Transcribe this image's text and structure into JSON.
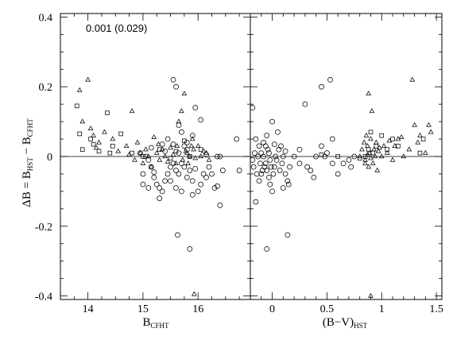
{
  "chart_data": {
    "type": "scatter",
    "annotation": "0.001 (0.029)",
    "ylabel": "ΔB = B_HST − B_CFHT",
    "ylim": [
      -0.41,
      0.41
    ],
    "yticks": [
      -0.4,
      -0.2,
      0,
      0.2,
      0.4
    ],
    "yticklabels": [
      "-0.4",
      "-0.2",
      "0",
      "0.2",
      "0.4"
    ],
    "grid": false,
    "legend": "none",
    "series": [
      {
        "marker": "triangle"
      },
      {
        "marker": "square"
      },
      {
        "marker": "circle"
      }
    ],
    "panels": [
      {
        "xlabel_main": "B",
        "xlabel_sub": "CFHT",
        "xlim": [
          13.5,
          16.95
        ],
        "xticks": [
          14,
          15,
          16
        ],
        "xticklabels": [
          "14",
          "15",
          "16"
        ],
        "points": {
          "triangle": [
            [
              13.85,
              0.19
            ],
            [
              14.0,
              0.22
            ],
            [
              13.9,
              0.1
            ],
            [
              14.05,
              0.08
            ],
            [
              14.1,
              0.06
            ],
            [
              14.2,
              0.04
            ],
            [
              14.15,
              0.025
            ],
            [
              14.3,
              0.07
            ],
            [
              14.45,
              0.05
            ],
            [
              14.55,
              0.015
            ],
            [
              14.7,
              0.03
            ],
            [
              14.8,
              0.13
            ],
            [
              14.85,
              -0.01
            ],
            [
              14.9,
              0.04
            ],
            [
              15.0,
              -0.02
            ],
            [
              15.05,
              0.02
            ],
            [
              15.1,
              0.0
            ],
            [
              15.15,
              -0.03
            ],
            [
              15.2,
              0.055
            ],
            [
              15.25,
              0.01
            ],
            [
              15.3,
              -0.01
            ],
            [
              15.35,
              0.02
            ],
            [
              15.4,
              0.0
            ],
            [
              15.45,
              -0.015
            ],
            [
              15.5,
              0.025
            ],
            [
              15.55,
              0.005
            ],
            [
              15.6,
              -0.02
            ],
            [
              15.62,
              0.03
            ],
            [
              15.65,
              0.1
            ],
            [
              15.7,
              0.13
            ],
            [
              15.72,
              -0.01
            ],
            [
              15.75,
              0.18
            ],
            [
              15.78,
              0.015
            ],
            [
              15.8,
              0.01
            ],
            [
              15.82,
              -0.02
            ],
            [
              15.85,
              0.0
            ],
            [
              15.88,
              0.03
            ],
            [
              15.9,
              0.05
            ],
            [
              15.92,
              0.02
            ],
            [
              15.95,
              -0.005
            ],
            [
              16.0,
              0.03
            ],
            [
              16.05,
              0.0
            ],
            [
              16.1,
              0.015
            ],
            [
              16.15,
              0.01
            ],
            [
              16.2,
              -0.01
            ],
            [
              15.93,
              -0.395
            ],
            [
              14.75,
              0.005
            ],
            [
              14.95,
              0.01
            ],
            [
              15.28,
              0.035
            ]
          ],
          "square": [
            [
              13.8,
              0.145
            ],
            [
              13.85,
              0.065
            ],
            [
              14.05,
              0.05
            ],
            [
              14.1,
              0.035
            ],
            [
              14.2,
              0.015
            ],
            [
              14.35,
              0.125
            ],
            [
              14.45,
              0.03
            ],
            [
              14.6,
              0.065
            ],
            [
              14.8,
              0.01
            ],
            [
              15.0,
              0.0
            ],
            [
              15.3,
              0.02
            ],
            [
              15.5,
              -0.005
            ],
            [
              15.6,
              0.015
            ],
            [
              15.75,
              0.045
            ],
            [
              15.85,
              0.0
            ],
            [
              16.05,
              0.02
            ],
            [
              13.9,
              0.02
            ],
            [
              14.4,
              0.01
            ]
          ],
          "circle": [
            [
              15.55,
              0.22
            ],
            [
              15.6,
              0.2
            ],
            [
              15.65,
              0.09
            ],
            [
              15.7,
              0.07
            ],
            [
              15.8,
              0.04
            ],
            [
              15.9,
              0.06
            ],
            [
              15.95,
              0.14
            ],
            [
              16.05,
              0.105
            ],
            [
              16.4,
              0.0
            ],
            [
              16.45,
              -0.04
            ],
            [
              16.25,
              -0.05
            ],
            [
              16.3,
              -0.09
            ],
            [
              16.35,
              -0.085
            ],
            [
              16.4,
              -0.14
            ],
            [
              16.15,
              -0.06
            ],
            [
              16.1,
              -0.05
            ],
            [
              16.05,
              -0.08
            ],
            [
              16.0,
              -0.1
            ],
            [
              15.9,
              -0.07
            ],
            [
              15.85,
              -0.04
            ],
            [
              15.8,
              -0.06
            ],
            [
              15.75,
              -0.03
            ],
            [
              15.7,
              -0.02
            ],
            [
              15.65,
              -0.05
            ],
            [
              15.6,
              -0.04
            ],
            [
              15.55,
              -0.02
            ],
            [
              15.5,
              -0.03
            ],
            [
              15.45,
              -0.05
            ],
            [
              15.4,
              -0.07
            ],
            [
              15.35,
              -0.1
            ],
            [
              15.3,
              -0.12
            ],
            [
              15.25,
              -0.08
            ],
            [
              15.2,
              -0.06
            ],
            [
              15.15,
              -0.03
            ],
            [
              15.1,
              -0.01
            ],
            [
              15.05,
              0.0
            ],
            [
              15.0,
              -0.05
            ],
            [
              14.95,
              0.01
            ],
            [
              15.0,
              -0.08
            ],
            [
              15.1,
              -0.09
            ],
            [
              15.3,
              -0.09
            ],
            [
              15.5,
              -0.07
            ],
            [
              15.7,
              -0.1
            ],
            [
              15.9,
              -0.11
            ],
            [
              16.2,
              -0.03
            ],
            [
              16.7,
              0.05
            ],
            [
              16.75,
              -0.04
            ],
            [
              15.63,
              -0.225
            ],
            [
              15.85,
              -0.265
            ],
            [
              15.45,
              0.05
            ],
            [
              15.35,
              0.035
            ],
            [
              15.8,
              0.02
            ],
            [
              15.2,
              -0.045
            ],
            [
              15.6,
              -0.09
            ],
            [
              16.15,
              0.005
            ],
            [
              16.35,
              0.0
            ],
            [
              15.95,
              -0.035
            ],
            [
              15.55,
              0.035
            ],
            [
              15.75,
              0.03
            ],
            [
              15.15,
              0.025
            ],
            [
              15.4,
              0.015
            ],
            [
              15.65,
              0.01
            ]
          ]
        }
      },
      {
        "xlabel_main": "(B−V)",
        "xlabel_sub": "HST",
        "xlim": [
          -0.2,
          1.55
        ],
        "xticks": [
          0,
          0.5,
          1,
          1.5
        ],
        "xticklabels": [
          "0",
          "0.5",
          "1",
          "1.5"
        ],
        "points": {
          "triangle": [
            [
              0.8,
              0.0
            ],
            [
              0.82,
              0.02
            ],
            [
              0.84,
              0.04
            ],
            [
              0.85,
              -0.01
            ],
            [
              0.86,
              0.06
            ],
            [
              0.87,
              0.03
            ],
            [
              0.88,
              -0.03
            ],
            [
              0.89,
              0.01
            ],
            [
              0.9,
              0.05
            ],
            [
              0.91,
              0.13
            ],
            [
              0.88,
              0.18
            ],
            [
              0.92,
              -0.02
            ],
            [
              0.93,
              0.02
            ],
            [
              0.94,
              0.0
            ],
            [
              0.95,
              0.04
            ],
            [
              0.96,
              -0.04
            ],
            [
              0.97,
              0.015
            ],
            [
              0.98,
              0.025
            ],
            [
              1.0,
              0.0
            ],
            [
              1.02,
              0.03
            ],
            [
              1.05,
              0.01
            ],
            [
              1.1,
              -0.01
            ],
            [
              1.12,
              0.03
            ],
            [
              1.15,
              0.05
            ],
            [
              1.2,
              0.0
            ],
            [
              1.25,
              0.02
            ],
            [
              1.28,
              0.22
            ],
            [
              1.3,
              0.09
            ],
            [
              1.33,
              0.04
            ],
            [
              1.35,
              0.06
            ],
            [
              1.4,
              0.01
            ],
            [
              1.43,
              0.09
            ],
            [
              1.45,
              0.07
            ],
            [
              0.9,
              -0.4
            ],
            [
              0.85,
              -0.02
            ],
            [
              0.87,
              0.005
            ],
            [
              0.9,
              -0.005
            ],
            [
              1.18,
              0.055
            ],
            [
              1.07,
              0.045
            ]
          ],
          "square": [
            [
              0.45,
              0.005
            ],
            [
              0.6,
              0.0
            ],
            [
              0.85,
              0.0
            ],
            [
              0.88,
              0.02
            ],
            [
              0.9,
              0.07
            ],
            [
              0.92,
              0.01
            ],
            [
              0.95,
              0.03
            ],
            [
              1.0,
              0.06
            ],
            [
              1.05,
              0.02
            ],
            [
              1.1,
              0.05
            ],
            [
              1.15,
              0.03
            ],
            [
              1.35,
              0.01
            ],
            [
              1.38,
              0.05
            ],
            [
              0.8,
              -0.005
            ]
          ],
          "circle": [
            [
              0.53,
              0.22
            ],
            [
              0.45,
              0.2
            ],
            [
              0.3,
              0.15
            ],
            [
              -0.18,
              0.14
            ],
            [
              -0.15,
              0.05
            ],
            [
              -0.12,
              0.03
            ],
            [
              -0.1,
              0.01
            ],
            [
              -0.08,
              0.0
            ],
            [
              -0.06,
              -0.02
            ],
            [
              -0.05,
              -0.04
            ],
            [
              -0.03,
              -0.06
            ],
            [
              -0.02,
              -0.08
            ],
            [
              0.0,
              -0.1
            ],
            [
              0.02,
              -0.03
            ],
            [
              0.04,
              -0.01
            ],
            [
              0.06,
              0.02
            ],
            [
              0.08,
              0.03
            ],
            [
              0.1,
              0.0
            ],
            [
              0.12,
              -0.05
            ],
            [
              0.14,
              -0.07
            ],
            [
              0.16,
              -0.03
            ],
            [
              0.2,
              0.0
            ],
            [
              0.25,
              -0.02
            ],
            [
              0.35,
              -0.04
            ],
            [
              0.4,
              0.0
            ],
            [
              0.5,
              0.01
            ],
            [
              0.55,
              -0.02
            ],
            [
              0.65,
              -0.02
            ],
            [
              0.7,
              -0.01
            ],
            [
              0.75,
              0.0
            ],
            [
              -0.15,
              -0.13
            ],
            [
              -0.12,
              -0.07
            ],
            [
              -0.1,
              -0.05
            ],
            [
              -0.08,
              0.04
            ],
            [
              -0.05,
              0.06
            ],
            [
              -0.03,
              0.01
            ],
            [
              0.0,
              0.1
            ],
            [
              0.05,
              0.07
            ],
            [
              0.1,
              -0.09
            ],
            [
              0.14,
              -0.225
            ],
            [
              -0.05,
              -0.265
            ],
            [
              0.15,
              -0.08
            ],
            [
              -0.18,
              -0.01
            ],
            [
              -0.17,
              -0.03
            ],
            [
              -0.16,
              0.01
            ],
            [
              -0.14,
              -0.05
            ],
            [
              -0.13,
              0.0
            ],
            [
              -0.11,
              -0.02
            ],
            [
              -0.09,
              -0.04
            ],
            [
              -0.07,
              -0.03
            ],
            [
              -0.04,
              0.02
            ],
            [
              -0.02,
              -0.01
            ],
            [
              -0.01,
              -0.03
            ],
            [
              0.01,
              -0.05
            ],
            [
              0.03,
              0.0
            ],
            [
              0.07,
              -0.04
            ],
            [
              0.09,
              -0.02
            ],
            [
              0.45,
              0.03
            ],
            [
              0.6,
              -0.05
            ],
            [
              0.55,
              0.05
            ],
            [
              0.38,
              -0.06
            ],
            [
              0.25,
              0.02
            ],
            [
              0.72,
              -0.03
            ],
            [
              0.48,
              0.0
            ],
            [
              0.12,
              0.015
            ],
            [
              -0.06,
              0.03
            ],
            [
              0.02,
              0.035
            ],
            [
              0.32,
              -0.03
            ]
          ]
        }
      }
    ]
  }
}
